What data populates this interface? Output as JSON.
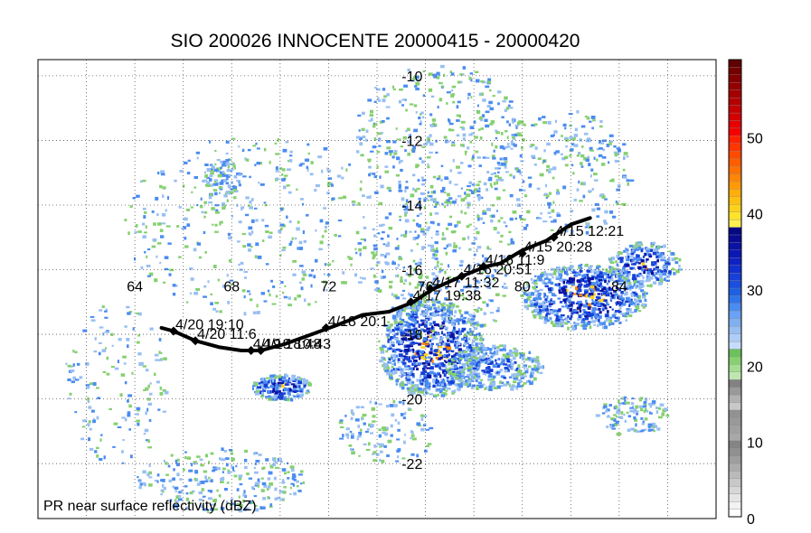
{
  "title": "SIO 200026 INNOCENTE 20000415 - 20000420",
  "caption": "PR near surface reflectivity (dBZ)",
  "map": {
    "lon_range": [
      60,
      88
    ],
    "lat_range": [
      -9.5,
      -23.7
    ],
    "lon_labels": [
      64,
      68,
      72,
      76,
      80,
      84
    ],
    "lat_labels": [
      -10,
      -12,
      -14,
      -16,
      -18,
      -20,
      -22
    ],
    "lon_label_lat": -16.5,
    "lat_label_lon": 75,
    "grid": true
  },
  "track": {
    "points": [
      {
        "lon": 65.1,
        "lat": -17.8
      },
      {
        "lon": 65.6,
        "lat": -17.9
      },
      {
        "lon": 66.5,
        "lat": -18.2
      },
      {
        "lon": 67.5,
        "lat": -18.4
      },
      {
        "lon": 68.4,
        "lat": -18.5
      },
      {
        "lon": 69.2,
        "lat": -18.5
      },
      {
        "lon": 70.2,
        "lat": -18.3
      },
      {
        "lon": 71.3,
        "lat": -18.0
      },
      {
        "lon": 72.4,
        "lat": -17.7
      },
      {
        "lon": 73.4,
        "lat": -17.4
      },
      {
        "lon": 74.5,
        "lat": -17.3
      },
      {
        "lon": 75.5,
        "lat": -17.0
      },
      {
        "lon": 76.3,
        "lat": -16.6
      },
      {
        "lon": 77.5,
        "lat": -16.2
      },
      {
        "lon": 78.5,
        "lat": -15.9
      },
      {
        "lon": 79.1,
        "lat": -15.8
      },
      {
        "lon": 80.0,
        "lat": -15.4
      },
      {
        "lon": 81.0,
        "lat": -15.1
      },
      {
        "lon": 82.0,
        "lat": -14.6
      },
      {
        "lon": 82.8,
        "lat": -14.4
      }
    ],
    "fixes": [
      {
        "lon": 65.6,
        "lat": -17.9,
        "label": "4/20 19:10"
      },
      {
        "lon": 66.5,
        "lat": -18.2,
        "label": "4/20 11:6"
      },
      {
        "lon": 68.8,
        "lat": -18.5,
        "label": "4/19 18:48"
      },
      {
        "lon": 69.2,
        "lat": -18.5,
        "label": "4/19 10:43"
      },
      {
        "lon": 71.9,
        "lat": -17.8,
        "label": "4/18 20:1"
      },
      {
        "lon": 75.4,
        "lat": -17.0,
        "label": "4/17 19:38"
      },
      {
        "lon": 76.2,
        "lat": -16.6,
        "label": "4/17 11:32"
      },
      {
        "lon": 77.5,
        "lat": -16.2,
        "label": "4/16 20:51"
      },
      {
        "lon": 78.4,
        "lat": -15.9,
        "label": "4/16 11:9"
      },
      {
        "lon": 80.0,
        "lat": -15.5,
        "label": "4/15 20:28"
      },
      {
        "lon": 81.3,
        "lat": -15.0,
        "label": "4/15 12:21"
      }
    ]
  },
  "rain_areas": [
    {
      "lon": 76.2,
      "lat": -18.4,
      "rlon": 2.2,
      "rlat": 1.5,
      "density": 900,
      "intensity": 0.85
    },
    {
      "lon": 82.5,
      "lat": -16.8,
      "rlon": 2.6,
      "rlat": 1.0,
      "density": 700,
      "intensity": 0.9
    },
    {
      "lon": 85.0,
      "lat": -15.8,
      "rlon": 1.5,
      "rlat": 0.7,
      "density": 250,
      "intensity": 0.7
    },
    {
      "lon": 70.0,
      "lat": -19.6,
      "rlon": 1.2,
      "rlat": 0.4,
      "density": 200,
      "intensity": 0.8
    },
    {
      "lon": 78.8,
      "lat": -19.0,
      "rlon": 2.0,
      "rlat": 0.7,
      "density": 350,
      "intensity": 0.3
    },
    {
      "lon": 76.7,
      "lat": -15.8,
      "rlon": 3.0,
      "rlat": 2.5,
      "density": 400,
      "intensity": 0.15
    },
    {
      "lon": 76.5,
      "lat": -11.8,
      "rlon": 3.5,
      "rlat": 2.2,
      "density": 350,
      "intensity": 0.1
    },
    {
      "lon": 81.5,
      "lat": -13.0,
      "rlon": 3.0,
      "rlat": 2.0,
      "density": 250,
      "intensity": 0.12
    },
    {
      "lon": 69.0,
      "lat": -14.6,
      "rlon": 5.5,
      "rlat": 2.8,
      "density": 400,
      "intensity": 0.05
    },
    {
      "lon": 84.5,
      "lat": -20.5,
      "rlon": 1.5,
      "rlat": 0.6,
      "density": 120,
      "intensity": 0.1
    },
    {
      "lon": 67.5,
      "lat": -22.5,
      "rlon": 3.5,
      "rlat": 1.0,
      "density": 250,
      "intensity": 0.1
    },
    {
      "lon": 74.3,
      "lat": -21.0,
      "rlon": 2.0,
      "rlat": 1.0,
      "density": 120,
      "intensity": 0.05
    },
    {
      "lon": 63.2,
      "lat": -19.5,
      "rlon": 2.2,
      "rlat": 2.5,
      "density": 150,
      "intensity": 0.05
    },
    {
      "lon": 67.6,
      "lat": -13.1,
      "rlon": 0.8,
      "rlat": 0.6,
      "density": 80,
      "intensity": 0.05
    }
  ],
  "colorbar": {
    "range": [
      0,
      60
    ],
    "ticks": [
      0,
      10,
      20,
      30,
      40,
      50
    ],
    "bins": [
      {
        "from": 0,
        "to": 10,
        "colors": [
          "#ffffff",
          "#f2f2f2",
          "#e4e4e4",
          "#d6d6d6",
          "#c8c8c8",
          "#bababa",
          "#acacac",
          "#9e9e9e",
          "#909090",
          "#848484"
        ]
      },
      {
        "from": 10,
        "to": 14,
        "colors": [
          "#a8a8a8",
          "#a0a0a0",
          "#999999",
          "#929292"
        ]
      },
      {
        "from": 14,
        "to": 18,
        "colors": [
          "#c8c8c8",
          "#b2b2b2",
          "#999999",
          "#828282"
        ]
      },
      {
        "from": 18,
        "to": 22,
        "colors": [
          "#bfe6b0",
          "#a3dd90",
          "#86d070",
          "#6bc25a"
        ]
      },
      {
        "from": 22,
        "to": 26,
        "colors": [
          "#c6dcfa",
          "#afcdf6",
          "#98bff2",
          "#80b0ee"
        ]
      },
      {
        "from": 26,
        "to": 30,
        "colors": [
          "#6aa2f5",
          "#4b8cf0",
          "#2f74ea",
          "#1e5fe3"
        ]
      },
      {
        "from": 30,
        "to": 34,
        "colors": [
          "#1a4fe0",
          "#1640d8",
          "#1230cf",
          "#0e22c4"
        ]
      },
      {
        "from": 34,
        "to": 38,
        "colors": [
          "#0b18b4",
          "#0a12a4",
          "#080c94",
          "#060884"
        ]
      },
      {
        "from": 38,
        "to": 42,
        "colors": [
          "#fff050",
          "#ffe32a",
          "#ffd21a",
          "#ffc10f"
        ]
      },
      {
        "from": 42,
        "to": 46,
        "colors": [
          "#ffae0a",
          "#ff9a06",
          "#ff8604",
          "#ff7202"
        ]
      },
      {
        "from": 46,
        "to": 50,
        "colors": [
          "#ff5e00",
          "#ff4a00",
          "#ff3600",
          "#ff2200"
        ]
      },
      {
        "from": 50,
        "to": 54,
        "colors": [
          "#f40000",
          "#e40000",
          "#d40000",
          "#c40000"
        ]
      },
      {
        "from": 54,
        "to": 60,
        "colors": [
          "#b40000",
          "#a40000",
          "#940000",
          "#840000",
          "#740000",
          "#600000"
        ]
      }
    ]
  },
  "colors": {
    "track": "#000000",
    "grid": "#555555",
    "rain_palette": [
      "#86d070",
      "#98bff2",
      "#4b8cf0",
      "#1640d8",
      "#0a12a4",
      "#ffd21a",
      "#ff8604"
    ]
  }
}
